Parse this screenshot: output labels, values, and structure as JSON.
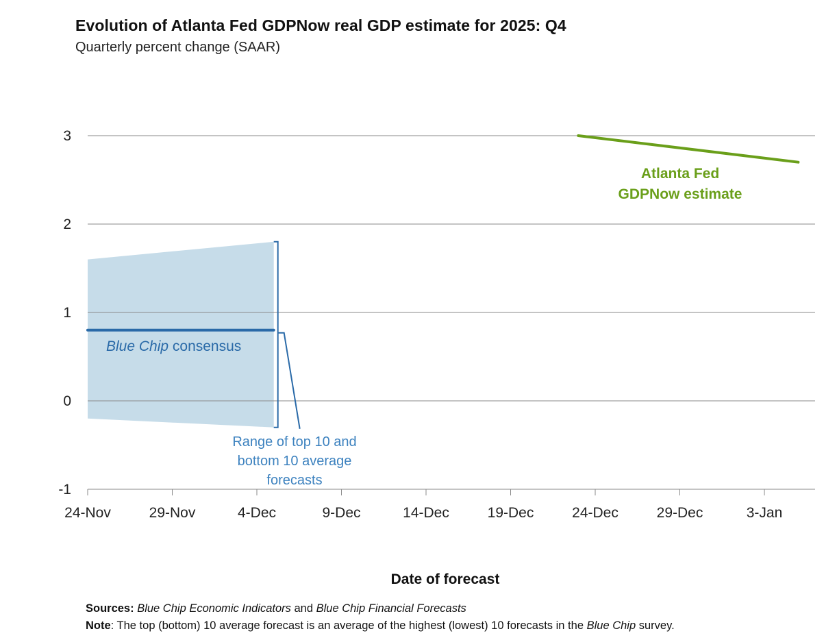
{
  "chart_data": {
    "type": "line",
    "title": "Evolution of Atlanta Fed GDPNow real GDP estimate for 2025: Q4",
    "subtitle": "Quarterly percent change (SAAR)",
    "xlabel": "Date of forecast",
    "ylabel": "",
    "ylim": [
      -1,
      3
    ],
    "yticks": [
      "-1",
      "0",
      "1",
      "2",
      "3"
    ],
    "ytick_values": [
      -1,
      0,
      1,
      2,
      3
    ],
    "x_day_range": [
      0,
      43.5
    ],
    "xtick_labels": [
      "24-Nov",
      "29-Nov",
      "4-Dec",
      "9-Dec",
      "14-Dec",
      "19-Dec",
      "24-Dec",
      "29-Dec",
      "3-Jan"
    ],
    "xtick_days": [
      0,
      5,
      10,
      15,
      20,
      25,
      30,
      35,
      40
    ],
    "grid": true,
    "series": [
      {
        "name": "Atlanta Fed GDPNow estimate",
        "color": "#6a9f1a",
        "x_days": [
          29,
          42
        ],
        "x_dates": [
          "23-Dec",
          "5-Jan"
        ],
        "values": [
          3.0,
          2.7
        ]
      },
      {
        "name": "Blue Chip consensus",
        "color": "#2a6aa8",
        "x_days": [
          0,
          11
        ],
        "x_dates": [
          "24-Nov",
          "5-Dec"
        ],
        "values": [
          0.8,
          0.8
        ]
      }
    ],
    "band": {
      "name": "Range of top 10 and bottom 10 average forecasts",
      "color": "#c6dce9",
      "x_days": [
        0,
        11
      ],
      "upper": [
        1.6,
        1.8
      ],
      "lower": [
        -0.2,
        -0.3
      ]
    },
    "annotations": {
      "gdpnow_label_line1": "Atlanta Fed",
      "gdpnow_label_line2": "GDPNow estimate",
      "consensus_label_italic": "Blue Chip",
      "consensus_label_rest": " consensus",
      "range_label_line1": "Range of top 10 and",
      "range_label_line2": "bottom 10 average",
      "range_label_line3": "forecasts"
    }
  },
  "footer": {
    "sources_label": "Sources:",
    "sources_italic1": "Blue Chip Economic Indicators",
    "sources_mid": " and ",
    "sources_italic2": "Blue Chip Financial Forecasts",
    "note_label": "Note",
    "note_text1": ": The top (bottom) 10 average forecast is an average of the highest (lowest) 10 forecasts in the ",
    "note_italic": "Blue Chip",
    "note_text2": " survey."
  }
}
